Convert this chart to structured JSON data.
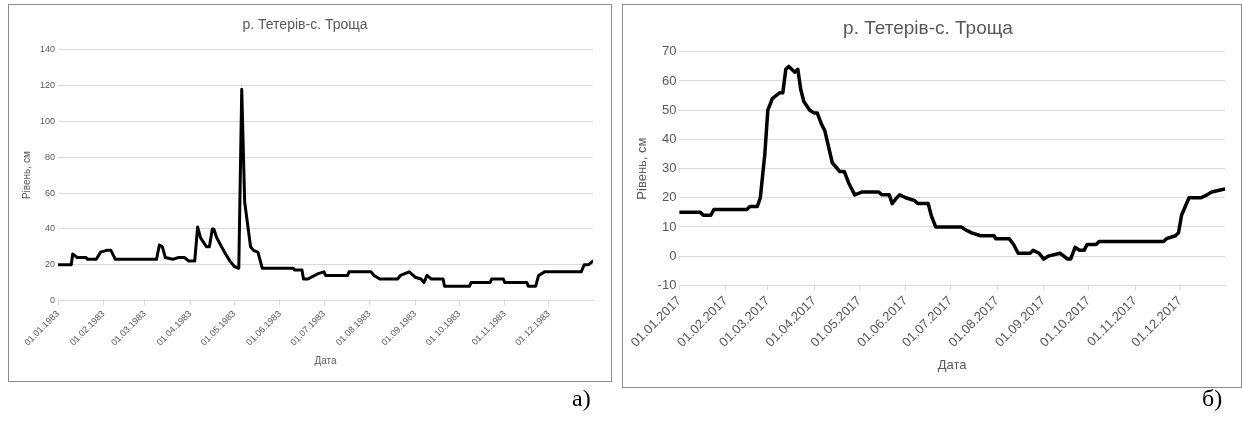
{
  "chart_data": [
    {
      "type": "line",
      "title": "р. Тетерів-с. Троща",
      "xlabel": "Дата",
      "ylabel": "Рівень, см",
      "grid": "y",
      "marker": "none",
      "line_style": "solid",
      "legend": false,
      "annotations": [
        "а)"
      ],
      "x": [
        "1983-01-01",
        "1983-01-10",
        "1983-01-11",
        "1983-01-14",
        "1983-01-20",
        "1983-01-21",
        "1983-01-27",
        "1983-01-30",
        "1983-02-03",
        "1983-02-06",
        "1983-02-09",
        "1983-03-09",
        "1983-03-11",
        "1983-03-13",
        "1983-03-15",
        "1983-03-20",
        "1983-03-24",
        "1983-03-28",
        "1983-03-31",
        "1983-04-04",
        "1983-04-06",
        "1983-04-08",
        "1983-04-12",
        "1983-04-14",
        "1983-04-16",
        "1983-04-17",
        "1983-04-19",
        "1983-04-21",
        "1983-04-25",
        "1983-04-28",
        "1983-05-01",
        "1983-05-04",
        "1983-05-06",
        "1983-05-08",
        "1983-05-12",
        "1983-05-14",
        "1983-05-17",
        "1983-05-20",
        "1983-06-10",
        "1983-06-11",
        "1983-06-16",
        "1983-06-17",
        "1983-06-20",
        "1983-06-27",
        "1983-07-01",
        "1983-07-02",
        "1983-07-17",
        "1983-07-18",
        "1983-08-02",
        "1983-08-04",
        "1983-08-08",
        "1983-08-20",
        "1983-08-22",
        "1983-08-28",
        "1983-09-01",
        "1983-09-05",
        "1983-09-07",
        "1983-09-09",
        "1983-09-12",
        "1983-09-20",
        "1983-09-21",
        "1983-10-08",
        "1983-10-09",
        "1983-10-22",
        "1983-10-23",
        "1983-10-31",
        "1983-11-01",
        "1983-11-16",
        "1983-11-17",
        "1983-11-22",
        "1983-11-24",
        "1983-11-28",
        "1983-12-23",
        "1983-12-25",
        "1983-12-28",
        "1983-12-31"
      ],
      "series": [
        {
          "color": "#000000",
          "values": [
            20,
            20,
            26,
            24,
            24,
            23,
            23,
            27,
            28,
            28,
            23,
            23,
            31,
            30,
            24,
            23,
            24,
            24,
            22,
            22,
            41,
            35,
            30,
            30,
            40,
            40,
            35,
            32,
            26,
            22,
            19,
            18,
            118,
            55,
            30,
            28,
            27,
            18,
            18,
            17,
            17,
            12,
            12,
            15,
            16,
            14,
            14,
            16,
            16,
            14,
            12,
            12,
            14,
            16,
            13,
            12,
            10,
            14,
            12,
            12,
            8,
            8,
            10,
            10,
            12,
            12,
            10,
            10,
            8,
            8,
            14,
            16,
            16,
            20,
            20,
            22
          ]
        }
      ],
      "xlim": [
        "1983-01-01",
        "1983-12-31"
      ],
      "xticks": [
        {
          "value": "1983-01-01",
          "label": "01.01.1983"
        },
        {
          "value": "1983-02-01",
          "label": "01.02.1983"
        },
        {
          "value": "1983-03-01",
          "label": "01.03.1983"
        },
        {
          "value": "1983-04-01",
          "label": "01.04.1983"
        },
        {
          "value": "1983-05-01",
          "label": "01.05.1983"
        },
        {
          "value": "1983-06-01",
          "label": "01.06.1983"
        },
        {
          "value": "1983-07-01",
          "label": "01.07.1983"
        },
        {
          "value": "1983-08-01",
          "label": "01.08.1983"
        },
        {
          "value": "1983-09-01",
          "label": "01.09.1983"
        },
        {
          "value": "1983-10-01",
          "label": "01.10.1983"
        },
        {
          "value": "1983-11-01",
          "label": "01.11.1983"
        },
        {
          "value": "1983-12-01",
          "label": "01.12.1983"
        }
      ],
      "ylim": [
        0,
        140
      ],
      "yticks": [
        0,
        20,
        40,
        60,
        80,
        100,
        120,
        140
      ]
    },
    {
      "type": "line",
      "title": "р. Тетерів-с. Троща",
      "xlabel": "Дата",
      "ylabel": "Рівень, см",
      "grid": "y",
      "marker": "none",
      "line_style": "solid",
      "legend": false,
      "annotations": [
        "б)"
      ],
      "x": [
        "2017-01-01",
        "2017-01-15",
        "2017-01-17",
        "2017-01-22",
        "2017-01-24",
        "2017-02-15",
        "2017-02-17",
        "2017-02-22",
        "2017-02-24",
        "2017-02-27",
        "2017-03-01",
        "2017-03-04",
        "2017-03-09",
        "2017-03-11",
        "2017-03-13",
        "2017-03-15",
        "2017-03-19",
        "2017-03-21",
        "2017-03-23",
        "2017-03-25",
        "2017-03-29",
        "2017-04-01",
        "2017-04-03",
        "2017-04-06",
        "2017-04-08",
        "2017-04-13",
        "2017-04-18",
        "2017-04-21",
        "2017-04-24",
        "2017-04-28",
        "2017-05-03",
        "2017-05-14",
        "2017-05-16",
        "2017-05-21",
        "2017-05-23",
        "2017-05-26",
        "2017-05-28",
        "2017-06-01",
        "2017-06-07",
        "2017-06-09",
        "2017-06-16",
        "2017-06-18",
        "2017-06-21",
        "2017-07-08",
        "2017-07-11",
        "2017-07-15",
        "2017-07-21",
        "2017-07-30",
        "2017-07-31",
        "2017-08-09",
        "2017-08-12",
        "2017-08-15",
        "2017-08-23",
        "2017-08-25",
        "2017-08-29",
        "2017-09-01",
        "2017-09-04",
        "2017-09-12",
        "2017-09-17",
        "2017-09-19",
        "2017-09-22",
        "2017-09-25",
        "2017-09-28",
        "2017-09-30",
        "2017-10-06",
        "2017-10-08",
        "2017-11-20",
        "2017-11-22",
        "2017-11-28",
        "2017-11-30",
        "2017-12-02",
        "2017-12-07",
        "2017-12-15",
        "2017-12-19",
        "2017-12-22",
        "2017-12-31"
      ],
      "series": [
        {
          "color": "#000000",
          "values": [
            15,
            15,
            14,
            14,
            16,
            16,
            17,
            17,
            20,
            35,
            50,
            54,
            56,
            56,
            64,
            65,
            63,
            64,
            57,
            53,
            50,
            49,
            49,
            45,
            43,
            32,
            29,
            29,
            25,
            21,
            22,
            22,
            21,
            21,
            18,
            20,
            21,
            20,
            19,
            18,
            18,
            14,
            10,
            10,
            9,
            8,
            7,
            7,
            6,
            6,
            4,
            1,
            1,
            2,
            1,
            -1,
            0,
            1,
            -1,
            -1,
            3,
            2,
            2,
            4,
            4,
            5,
            5,
            6,
            7,
            8,
            14,
            20,
            20,
            21,
            22,
            23
          ]
        }
      ],
      "xlim": [
        "2017-01-01",
        "2017-12-31"
      ],
      "xticks": [
        {
          "value": "2017-01-01",
          "label": "01.01.2017"
        },
        {
          "value": "2017-02-01",
          "label": "01.02.2017"
        },
        {
          "value": "2017-03-01",
          "label": "01.03.2017"
        },
        {
          "value": "2017-04-01",
          "label": "01.04.2017"
        },
        {
          "value": "2017-05-01",
          "label": "01.05.2017"
        },
        {
          "value": "2017-06-01",
          "label": "01.06.2017"
        },
        {
          "value": "2017-07-01",
          "label": "01.07.2017"
        },
        {
          "value": "2017-08-01",
          "label": "01.08.2017"
        },
        {
          "value": "2017-09-01",
          "label": "01.09.2017"
        },
        {
          "value": "2017-10-01",
          "label": "01.10.2017"
        },
        {
          "value": "2017-11-01",
          "label": "01.11.2017"
        },
        {
          "value": "2017-12-01",
          "label": "01.12.2017"
        }
      ],
      "ylim": [
        -10,
        70
      ],
      "yticks": [
        -10,
        0,
        10,
        20,
        30,
        40,
        50,
        60,
        70
      ]
    }
  ]
}
